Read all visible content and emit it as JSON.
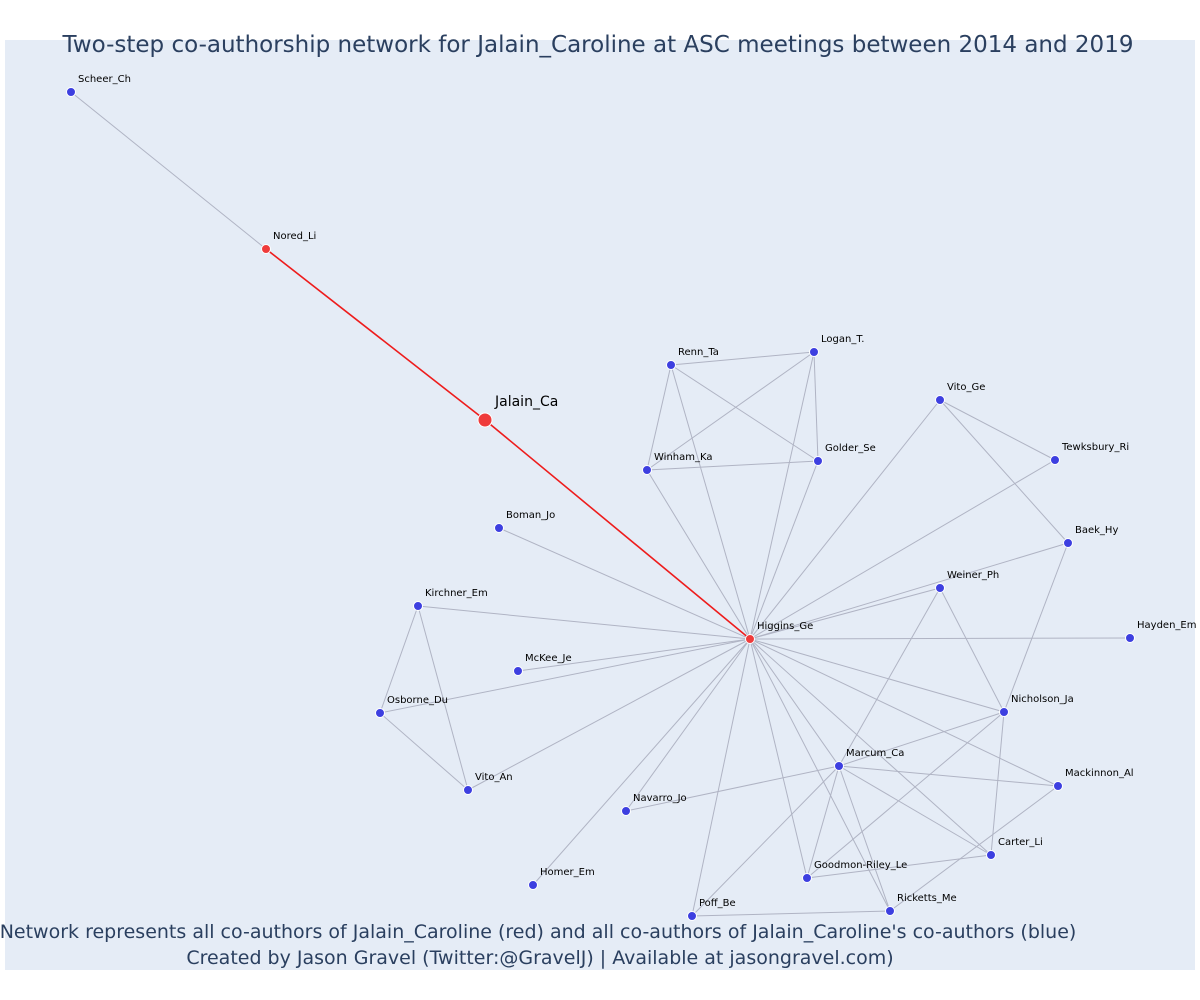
{
  "figure": {
    "title": "Two-step co-authorship network for Jalain_Caroline at ASC meetings between 2014 and 2019",
    "caption_line1": "Network represents all co-authors of Jalain_Caroline (red) and all co-authors of Jalain_Caroline's co-authors (blue)",
    "caption_line2": "Created by Jason Gravel (Twitter:@GravelJ) | Available at jasongravel.com)"
  },
  "colors": {
    "background": "#e5ecf6",
    "focus_node": "#ef3b3b",
    "coauthor_node": "#ef3b3b",
    "second_step_node": "#3d3fe0",
    "edge": "#b0b4c4",
    "focus_edge": "#ee1c1c"
  },
  "nodes": [
    {
      "id": "Jalain_Ca",
      "label": "Jalain_Ca",
      "group": "focus"
    },
    {
      "id": "Nored_Li",
      "label": "Nored_Li",
      "group": "coauthor"
    },
    {
      "id": "Higgins_Ge",
      "label": "Higgins_Ge",
      "group": "coauthor"
    },
    {
      "id": "Scheer_Ch",
      "label": "Scheer_Ch",
      "group": "second"
    },
    {
      "id": "Renn_Ta",
      "label": "Renn_Ta",
      "group": "second"
    },
    {
      "id": "Logan_T",
      "label": "Logan_T.",
      "group": "second"
    },
    {
      "id": "Vito_Ge",
      "label": "Vito_Ge",
      "group": "second"
    },
    {
      "id": "Tewksbury_Ri",
      "label": "Tewksbury_Ri",
      "group": "second"
    },
    {
      "id": "Winham_Ka",
      "label": "Winham_Ka",
      "group": "second"
    },
    {
      "id": "Golder_Se",
      "label": "Golder_Se",
      "group": "second"
    },
    {
      "id": "Boman_Jo",
      "label": "Boman_Jo",
      "group": "second"
    },
    {
      "id": "Baek_Hy",
      "label": "Baek_Hy",
      "group": "second"
    },
    {
      "id": "Weiner_Ph",
      "label": "Weiner_Ph",
      "group": "second"
    },
    {
      "id": "Kirchner_Em",
      "label": "Kirchner_Em",
      "group": "second"
    },
    {
      "id": "Hayden_Em",
      "label": "Hayden_Em",
      "group": "second"
    },
    {
      "id": "McKee_Je",
      "label": "McKee_Je",
      "group": "second"
    },
    {
      "id": "Osborne_Du",
      "label": "Osborne_Du",
      "group": "second"
    },
    {
      "id": "Nicholson_Ja",
      "label": "Nicholson_Ja",
      "group": "second"
    },
    {
      "id": "Marcum_Ca",
      "label": "Marcum_Ca",
      "group": "second"
    },
    {
      "id": "Vito_An",
      "label": "Vito_An",
      "group": "second"
    },
    {
      "id": "Mackinnon_Al",
      "label": "Mackinnon_Al",
      "group": "second"
    },
    {
      "id": "Navarro_Jo",
      "label": "Navarro_Jo",
      "group": "second"
    },
    {
      "id": "Carter_Li",
      "label": "Carter_Li",
      "group": "second"
    },
    {
      "id": "Goodmon_Riley_Le",
      "label": "Goodmon-Riley_Le",
      "group": "second"
    },
    {
      "id": "Homer_Em",
      "label": "Homer_Em",
      "group": "second"
    },
    {
      "id": "Poff_Be",
      "label": "Poff_Be",
      "group": "second"
    },
    {
      "id": "Ricketts_Me",
      "label": "Ricketts_Me",
      "group": "second"
    }
  ],
  "edges": [
    {
      "source": "Jalain_Ca",
      "target": "Nored_Li",
      "focus": true
    },
    {
      "source": "Jalain_Ca",
      "target": "Higgins_Ge",
      "focus": true
    },
    {
      "source": "Nored_Li",
      "target": "Scheer_Ch"
    },
    {
      "source": "Higgins_Ge",
      "target": "Renn_Ta"
    },
    {
      "source": "Higgins_Ge",
      "target": "Logan_T"
    },
    {
      "source": "Higgins_Ge",
      "target": "Winham_Ka"
    },
    {
      "source": "Higgins_Ge",
      "target": "Golder_Se"
    },
    {
      "source": "Higgins_Ge",
      "target": "Vito_Ge"
    },
    {
      "source": "Higgins_Ge",
      "target": "Tewksbury_Ri"
    },
    {
      "source": "Higgins_Ge",
      "target": "Boman_Jo"
    },
    {
      "source": "Higgins_Ge",
      "target": "Baek_Hy"
    },
    {
      "source": "Higgins_Ge",
      "target": "Weiner_Ph"
    },
    {
      "source": "Higgins_Ge",
      "target": "Hayden_Em"
    },
    {
      "source": "Higgins_Ge",
      "target": "Kirchner_Em"
    },
    {
      "source": "Higgins_Ge",
      "target": "McKee_Je"
    },
    {
      "source": "Higgins_Ge",
      "target": "Osborne_Du"
    },
    {
      "source": "Higgins_Ge",
      "target": "Vito_An"
    },
    {
      "source": "Higgins_Ge",
      "target": "Nicholson_Ja"
    },
    {
      "source": "Higgins_Ge",
      "target": "Marcum_Ca"
    },
    {
      "source": "Higgins_Ge",
      "target": "Mackinnon_Al"
    },
    {
      "source": "Higgins_Ge",
      "target": "Navarro_Jo"
    },
    {
      "source": "Higgins_Ge",
      "target": "Carter_Li"
    },
    {
      "source": "Higgins_Ge",
      "target": "Goodmon_Riley_Le"
    },
    {
      "source": "Higgins_Ge",
      "target": "Homer_Em"
    },
    {
      "source": "Higgins_Ge",
      "target": "Poff_Be"
    },
    {
      "source": "Higgins_Ge",
      "target": "Ricketts_Me"
    },
    {
      "source": "Renn_Ta",
      "target": "Logan_T"
    },
    {
      "source": "Renn_Ta",
      "target": "Winham_Ka"
    },
    {
      "source": "Renn_Ta",
      "target": "Golder_Se"
    },
    {
      "source": "Logan_T",
      "target": "Winham_Ka"
    },
    {
      "source": "Logan_T",
      "target": "Golder_Se"
    },
    {
      "source": "Winham_Ka",
      "target": "Golder_Se"
    },
    {
      "source": "Vito_Ge",
      "target": "Tewksbury_Ri"
    },
    {
      "source": "Vito_Ge",
      "target": "Baek_Hy"
    },
    {
      "source": "Baek_Hy",
      "target": "Nicholson_Ja"
    },
    {
      "source": "Weiner_Ph",
      "target": "Nicholson_Ja"
    },
    {
      "source": "Weiner_Ph",
      "target": "Marcum_Ca"
    },
    {
      "source": "Kirchner_Em",
      "target": "Osborne_Du"
    },
    {
      "source": "Kirchner_Em",
      "target": "Vito_An"
    },
    {
      "source": "Osborne_Du",
      "target": "Vito_An"
    },
    {
      "source": "Nicholson_Ja",
      "target": "Marcum_Ca"
    },
    {
      "source": "Nicholson_Ja",
      "target": "Carter_Li"
    },
    {
      "source": "Nicholson_Ja",
      "target": "Goodmon_Riley_Le"
    },
    {
      "source": "Marcum_Ca",
      "target": "Navarro_Jo"
    },
    {
      "source": "Marcum_Ca",
      "target": "Mackinnon_Al"
    },
    {
      "source": "Marcum_Ca",
      "target": "Carter_Li"
    },
    {
      "source": "Marcum_Ca",
      "target": "Goodmon_Riley_Le"
    },
    {
      "source": "Marcum_Ca",
      "target": "Poff_Be"
    },
    {
      "source": "Marcum_Ca",
      "target": "Ricketts_Me"
    },
    {
      "source": "Mackinnon_Al",
      "target": "Ricketts_Me"
    },
    {
      "source": "Carter_Li",
      "target": "Goodmon_Riley_Le"
    },
    {
      "source": "Poff_Be",
      "target": "Ricketts_Me"
    }
  ]
}
